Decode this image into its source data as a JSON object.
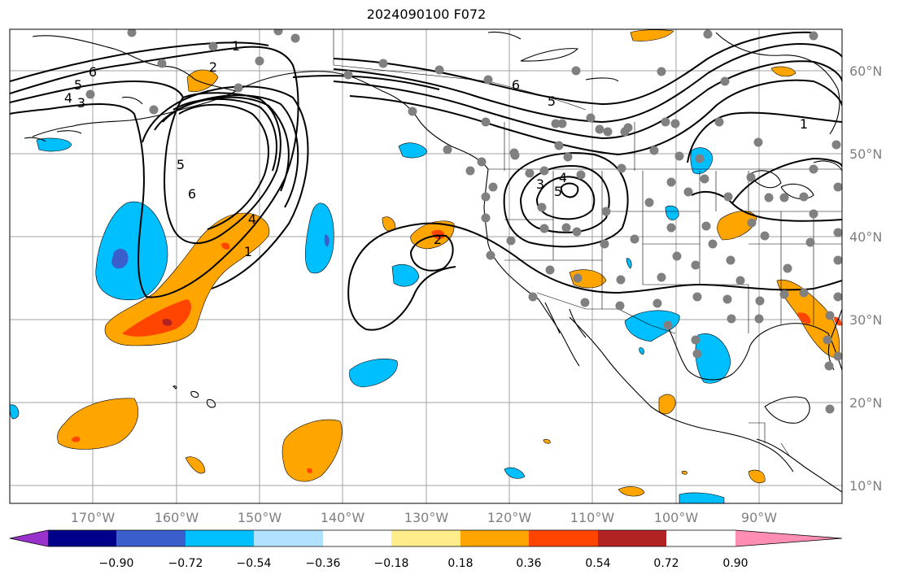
{
  "title": "2024090100 F072",
  "lat_labels": [
    "60°N",
    "50°N",
    "40°N",
    "30°N",
    "20°N",
    "10°N"
  ],
  "lon_labels": [
    "170°W",
    "160°W",
    "150°W",
    "140°W",
    "130°W",
    "120°W",
    "110°W",
    "100°W",
    "90°W"
  ],
  "colorbar": {
    "ticks": [
      "−0.90",
      "−0.72",
      "−0.54",
      "−0.36",
      "−0.18",
      "0.18",
      "0.36",
      "0.54",
      "0.72",
      "0.90"
    ],
    "colors": [
      "#9932cc",
      "#00008b",
      "#3a5fcd",
      "#00bfff",
      "#b0e2ff",
      "#ffffff",
      "#ffec8b",
      "#ffa500",
      "#ff4500",
      "#b22222",
      "#ff8db4"
    ]
  },
  "contour_labels": [
    "6",
    "5",
    "4",
    "3",
    "1",
    "2",
    "5",
    "6",
    "4",
    "1",
    "2",
    "6",
    "5",
    "1",
    "4",
    "3",
    "5"
  ],
  "colors": {
    "land_outline": "#000000",
    "contour": "#000000",
    "grid": "#a0a0a0",
    "station_dot": "#808080",
    "positive": "#ffa500",
    "positive_strong": "#ff4500",
    "negative": "#00bfff",
    "negative_strong": "#3a5fcd"
  }
}
